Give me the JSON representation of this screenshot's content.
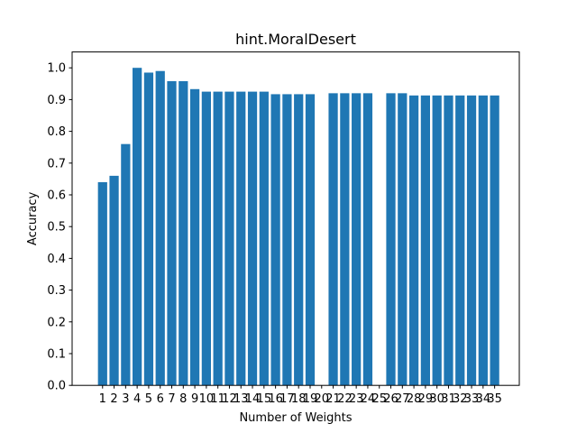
{
  "chart_data": {
    "type": "bar",
    "title": "hint.MoralDesert",
    "xlabel": "Number of Weights",
    "ylabel": "Accuracy",
    "categories": [
      "1",
      "2",
      "3",
      "4",
      "5",
      "6",
      "7",
      "8",
      "9",
      "10",
      "11",
      "12",
      "13",
      "14",
      "15",
      "16",
      "17",
      "18",
      "19",
      "20",
      "21",
      "22",
      "23",
      "24",
      "25",
      "26",
      "27",
      "28",
      "29",
      "30",
      "31",
      "32",
      "33",
      "34",
      "35"
    ],
    "values": [
      0.64,
      0.66,
      0.76,
      1.0,
      0.985,
      0.99,
      0.958,
      0.958,
      0.933,
      0.925,
      0.925,
      0.925,
      0.925,
      0.925,
      0.925,
      0.917,
      0.917,
      0.917,
      0.917,
      null,
      0.92,
      0.92,
      0.92,
      0.92,
      null,
      0.92,
      0.92,
      0.913,
      0.913,
      0.913,
      0.913,
      0.913,
      0.913,
      0.913,
      0.913
    ],
    "yticks": [
      "0.0",
      "0.1",
      "0.2",
      "0.3",
      "0.4",
      "0.5",
      "0.6",
      "0.7",
      "0.8",
      "0.9",
      "1.0"
    ],
    "ylim": [
      0,
      1.05
    ],
    "bar_color": "#1f77b4",
    "grid": false,
    "legend": "none"
  }
}
